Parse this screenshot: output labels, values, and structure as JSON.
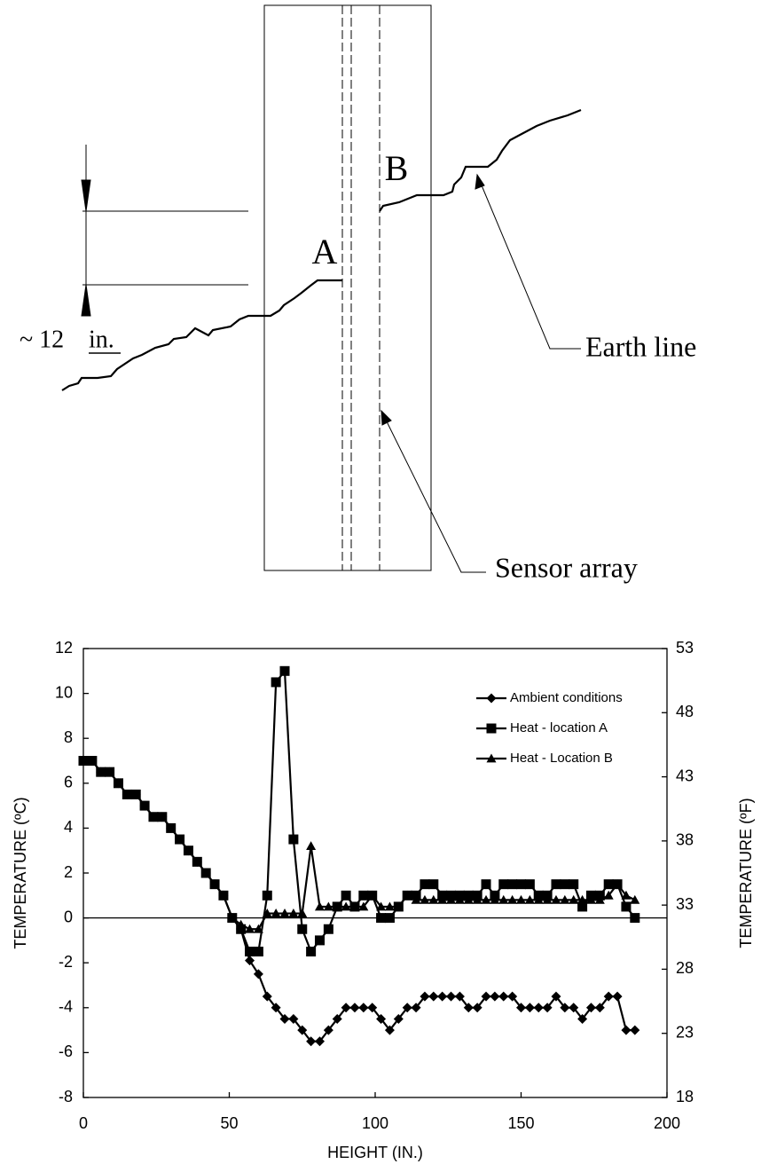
{
  "diagram": {
    "label_a": "A",
    "label_b": "B",
    "dimension": "~ 12",
    "dimension_unit": "in.",
    "earth_line": "Earth line",
    "sensor_array": "Sensor array"
  },
  "chart_data": {
    "type": "line",
    "x_label": "HEIGHT (IN.)",
    "y_label": "TEMPERATURE (ºC)",
    "y2_label": "TEMPERATURE (ºF)",
    "x": [
      0,
      3,
      6,
      9,
      12,
      15,
      18,
      21,
      24,
      27,
      30,
      33,
      36,
      39,
      42,
      45,
      48,
      51,
      54,
      57,
      60,
      63,
      66,
      69,
      72,
      75,
      78,
      81,
      84,
      87,
      90,
      93,
      96,
      99,
      102,
      105,
      108,
      111,
      114,
      117,
      120,
      123,
      126,
      129,
      132,
      135,
      138,
      141,
      144,
      147,
      150,
      153,
      156,
      159,
      162,
      165,
      168,
      171,
      174,
      177,
      180,
      183,
      186,
      189
    ],
    "series": [
      {
        "name": "Ambient conditions",
        "color": "#000000",
        "marker": "diamond",
        "values": [
          7,
          7,
          6.5,
          6.5,
          6,
          5.5,
          5.5,
          5,
          4.5,
          4.5,
          4,
          3.5,
          3,
          2.5,
          2,
          1.5,
          1,
          0,
          -0.5,
          -1.9,
          -2.5,
          -3.5,
          -4,
          -4.5,
          -4.5,
          -5,
          -5.5,
          -5.5,
          -5,
          -4.5,
          -4,
          -4,
          -4,
          -4,
          -4.5,
          -5,
          -4.5,
          -4,
          -4,
          -3.5,
          -3.5,
          -3.5,
          -3.5,
          -3.5,
          -4,
          -4,
          -3.5,
          -3.5,
          -3.5,
          -3.5,
          -4,
          -4,
          -4,
          -4,
          -3.5,
          -4,
          -4,
          -4.5,
          -4,
          -4,
          -3.5,
          -3.5,
          -5,
          -5
        ]
      },
      {
        "name": "Heat - location A",
        "color": "#000000",
        "marker": "square",
        "values": [
          7,
          7,
          6.5,
          6.5,
          6,
          5.5,
          5.5,
          5,
          4.5,
          4.5,
          4,
          3.5,
          3,
          2.5,
          2,
          1.5,
          1,
          0,
          -0.5,
          -1.5,
          -1.5,
          1,
          10.5,
          11,
          3.5,
          -0.5,
          -1.5,
          -1,
          -0.5,
          0.5,
          1,
          0.5,
          1,
          1,
          0,
          0,
          0.5,
          1,
          1,
          1.5,
          1.5,
          1,
          1,
          1,
          1,
          1,
          1.5,
          1,
          1.5,
          1.5,
          1.5,
          1.5,
          1,
          1,
          1.5,
          1.5,
          1.5,
          0.5,
          1,
          1,
          1.5,
          1.5,
          0.5,
          0
        ]
      },
      {
        "name": "Heat - Location B",
        "color": "#000000",
        "marker": "triangle",
        "values": [
          null,
          null,
          null,
          null,
          null,
          null,
          null,
          null,
          null,
          null,
          null,
          null,
          null,
          null,
          null,
          null,
          null,
          0,
          -0.3,
          -0.5,
          -0.5,
          0.2,
          0.2,
          0.2,
          0.2,
          0.2,
          3.2,
          0.5,
          0.5,
          0.5,
          0.5,
          0.5,
          0.5,
          1,
          0.5,
          0.5,
          0.5,
          1,
          0.8,
          0.8,
          0.8,
          0.8,
          0.8,
          0.8,
          0.8,
          0.8,
          0.8,
          0.8,
          0.8,
          0.8,
          0.8,
          0.8,
          0.8,
          0.8,
          0.8,
          0.8,
          0.8,
          0.8,
          0.8,
          0.8,
          1,
          1.5,
          1,
          0.8
        ]
      }
    ],
    "xlim": [
      0,
      200
    ],
    "xticks": [
      0,
      50,
      100,
      150,
      200
    ],
    "ylim": [
      -8,
      12
    ],
    "yticks": [
      -8,
      -6,
      -4,
      -2,
      0,
      2,
      4,
      6,
      8,
      10,
      12
    ],
    "y2lim": [
      18,
      53
    ],
    "y2ticks": [
      18,
      23,
      28,
      33,
      38,
      43,
      48,
      53
    ],
    "legend": "upper right",
    "grid": false
  }
}
